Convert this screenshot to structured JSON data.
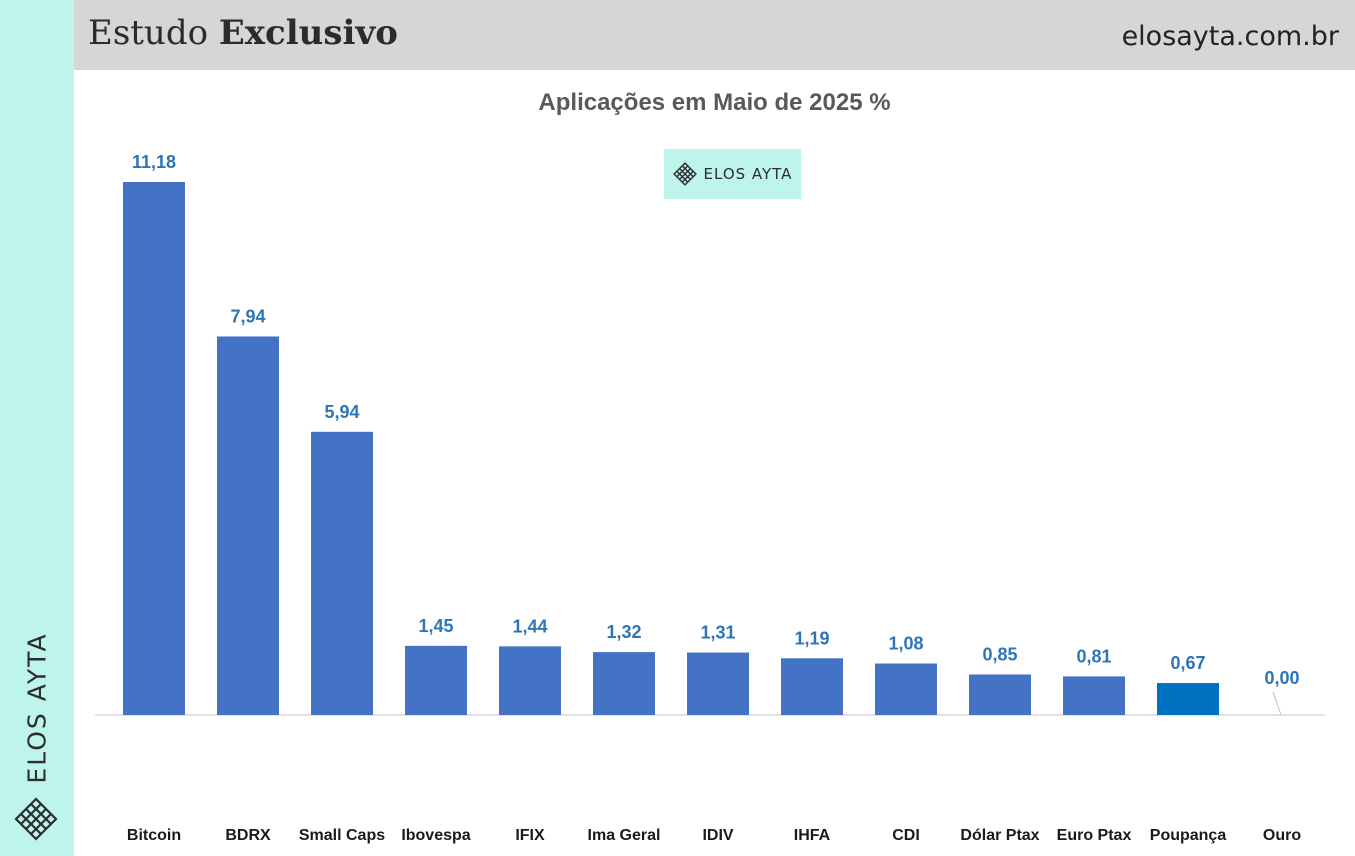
{
  "header": {
    "title_regular": "Estudo",
    "title_bold": "Exclusivo",
    "site": "elosayta.com.br"
  },
  "brand": {
    "sidebar_text": "ELOS AYTA",
    "chart_logo_text": "ELOS AYTA",
    "logo_icon": "lattice-diamond-icon",
    "accent_color": "#bdf4ec"
  },
  "chart_data": {
    "type": "bar",
    "title": "Aplicações em Maio de 2025 %",
    "xlabel": "",
    "ylabel": "",
    "categories": [
      "Bitcoin",
      "BDRX",
      "Small Caps",
      "Ibovespa",
      "IFIX",
      "Ima Geral",
      "IDIV",
      "IHFA",
      "CDI",
      "Dólar Ptax",
      "Euro Ptax",
      "Poupança",
      "Ouro"
    ],
    "values": [
      11.18,
      7.94,
      5.94,
      1.45,
      1.44,
      1.32,
      1.31,
      1.19,
      1.08,
      0.85,
      0.81,
      0.67,
      0.0
    ],
    "value_labels": [
      "11,18",
      "7,94",
      "5,94",
      "1,45",
      "1,44",
      "1,32",
      "1,31",
      "1,19",
      "1,08",
      "0,85",
      "0,81",
      "0,67",
      "0,00"
    ],
    "ylim": [
      0,
      11.18
    ],
    "grid": false,
    "legend": "none",
    "bar_color": "#4472c4",
    "highlight_color": "#0070c0",
    "highlight_category": "Poupança",
    "label_color": "#2e75b6"
  }
}
